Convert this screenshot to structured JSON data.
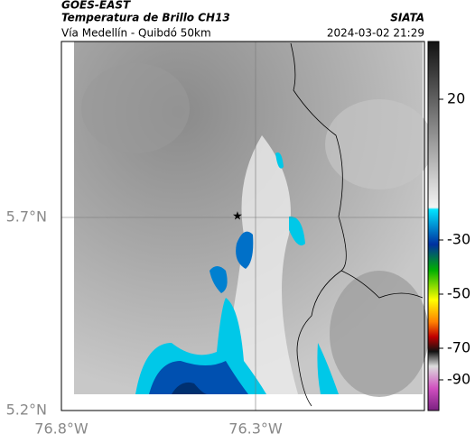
{
  "header": {
    "satellite": "GOES-EAST",
    "title": "Temperatura de Brillo CH13",
    "source": "SIATA",
    "subtitle": "Vía Medellín - Quibdó 50km",
    "datetime": "2024-03-02 21:29"
  },
  "axes": {
    "lat_labels": [
      "5.7°N",
      "5.2°N"
    ],
    "lon_labels": [
      "76.8°W",
      "76.3°W"
    ]
  },
  "colorbar": {
    "ticks": [
      20,
      -30,
      -50,
      -70,
      -90
    ]
  }
}
